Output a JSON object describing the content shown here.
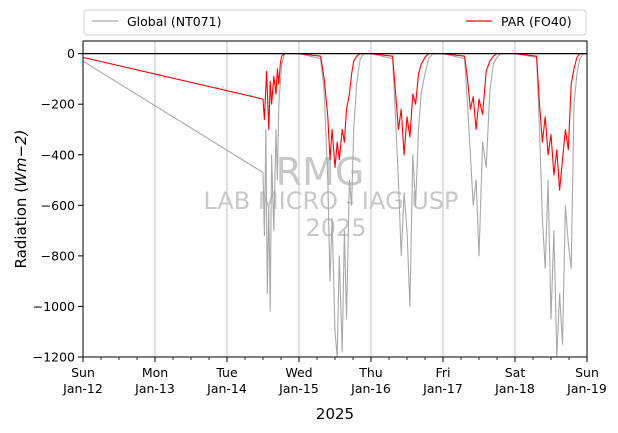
{
  "chart_data": {
    "type": "line",
    "xlabel": "2025",
    "ylabel_prefix": "Radiation (",
    "ylabel_unit": "Wm",
    "ylabel_suffix": "−2)",
    "ylim": [
      -1200,
      50
    ],
    "yticks": [
      0,
      -200,
      -400,
      -600,
      -800,
      -1000,
      -1200
    ],
    "xlim_day": [
      0,
      7
    ],
    "xticks": [
      {
        "day": 0,
        "weekday": "Sun",
        "date": "Jan-12"
      },
      {
        "day": 1,
        "weekday": "Mon",
        "date": "Jan-13"
      },
      {
        "day": 2,
        "weekday": "Tue",
        "date": "Jan-14"
      },
      {
        "day": 3,
        "weekday": "Wed",
        "date": "Jan-15"
      },
      {
        "day": 4,
        "weekday": "Thu",
        "date": "Jan-16"
      },
      {
        "day": 5,
        "weekday": "Fri",
        "date": "Jan-17"
      },
      {
        "day": 6,
        "weekday": "Sat",
        "date": "Jan-18"
      },
      {
        "day": 7,
        "weekday": "Sun",
        "date": "Jan-19"
      }
    ],
    "grid": "vertical",
    "legend_placement": "top",
    "zero_line": 0,
    "series": [
      {
        "name": "Global (NT071)",
        "color": "#a9a9a9",
        "x_day": [
          0,
          2.5,
          2.52,
          2.54,
          2.56,
          2.58,
          2.6,
          2.62,
          2.65,
          2.68,
          2.7,
          2.72,
          2.74,
          2.76,
          2.8,
          3.0,
          3.3,
          3.35,
          3.4,
          3.43,
          3.46,
          3.5,
          3.53,
          3.56,
          3.6,
          3.63,
          3.66,
          3.7,
          3.73,
          3.76,
          3.8,
          3.85,
          3.9,
          4.0,
          4.3,
          4.34,
          4.38,
          4.42,
          4.46,
          4.5,
          4.54,
          4.58,
          4.62,
          4.66,
          4.7,
          4.75,
          4.8,
          4.86,
          5.0,
          5.3,
          5.34,
          5.38,
          5.42,
          5.46,
          5.5,
          5.55,
          5.6,
          5.65,
          5.7,
          5.75,
          5.8,
          5.86,
          6.0,
          6.3,
          6.34,
          6.38,
          6.42,
          6.46,
          6.5,
          6.54,
          6.58,
          6.62,
          6.66,
          6.7,
          6.74,
          6.78,
          6.82,
          6.86,
          6.9,
          6.95,
          7.0
        ],
        "y": [
          -30,
          -470,
          -720,
          -300,
          -950,
          -600,
          -1020,
          -400,
          -700,
          -300,
          -500,
          -200,
          -120,
          -40,
          0,
          0,
          -20,
          -150,
          -500,
          -900,
          -650,
          -1100,
          -1200,
          -800,
          -1180,
          -700,
          -1050,
          -500,
          -600,
          -300,
          -120,
          -20,
          0,
          0,
          -20,
          -250,
          -500,
          -800,
          -550,
          -700,
          -1000,
          -400,
          -600,
          -300,
          -150,
          -80,
          -20,
          0,
          0,
          -20,
          -200,
          -400,
          -600,
          -500,
          -800,
          -350,
          -450,
          -150,
          -40,
          -15,
          0,
          0,
          0,
          -15,
          -300,
          -650,
          -850,
          -500,
          -1050,
          -700,
          -1200,
          -950,
          -1150,
          -600,
          -750,
          -850,
          -200,
          -80,
          -20,
          0,
          0
        ]
      },
      {
        "name": "PAR (FO40)",
        "color": "#ff0000",
        "x_day": [
          0,
          2.5,
          2.52,
          2.55,
          2.58,
          2.6,
          2.62,
          2.65,
          2.68,
          2.7,
          2.72,
          2.74,
          2.76,
          2.8,
          3.0,
          3.3,
          3.35,
          3.4,
          3.43,
          3.46,
          3.5,
          3.53,
          3.56,
          3.6,
          3.63,
          3.66,
          3.7,
          3.73,
          3.76,
          3.8,
          3.85,
          3.9,
          4.0,
          4.3,
          4.34,
          4.38,
          4.42,
          4.46,
          4.5,
          4.54,
          4.58,
          4.62,
          4.66,
          4.7,
          4.75,
          4.8,
          4.86,
          5.0,
          5.3,
          5.34,
          5.38,
          5.42,
          5.46,
          5.5,
          5.55,
          5.6,
          5.65,
          5.7,
          5.75,
          5.8,
          5.86,
          6.0,
          6.3,
          6.34,
          6.38,
          6.42,
          6.46,
          6.5,
          6.54,
          6.58,
          6.62,
          6.66,
          6.7,
          6.74,
          6.78,
          6.82,
          6.86,
          6.9,
          6.95,
          7.0
        ],
        "y": [
          -15,
          -180,
          -260,
          -70,
          -300,
          -110,
          -200,
          -90,
          -160,
          -60,
          -120,
          -40,
          -10,
          0,
          0,
          -10,
          -100,
          -250,
          -420,
          -300,
          -450,
          -350,
          -420,
          -300,
          -350,
          -220,
          -160,
          -80,
          -30,
          -10,
          0,
          0,
          0,
          -10,
          -150,
          -300,
          -220,
          -400,
          -250,
          -330,
          -160,
          -200,
          -80,
          -40,
          -15,
          0,
          0,
          0,
          -10,
          -100,
          -220,
          -170,
          -300,
          -180,
          -240,
          -70,
          -30,
          -10,
          0,
          0,
          0,
          0,
          -10,
          -200,
          -350,
          -250,
          -400,
          -320,
          -480,
          -380,
          -540,
          -420,
          -300,
          -380,
          -120,
          -60,
          -15,
          0,
          0,
          0
        ]
      }
    ],
    "zero_line_color": "#000000"
  },
  "watermark": {
    "line1": "RMG",
    "line2": "LAB MICRO - IAG USP",
    "line3": "2025"
  }
}
